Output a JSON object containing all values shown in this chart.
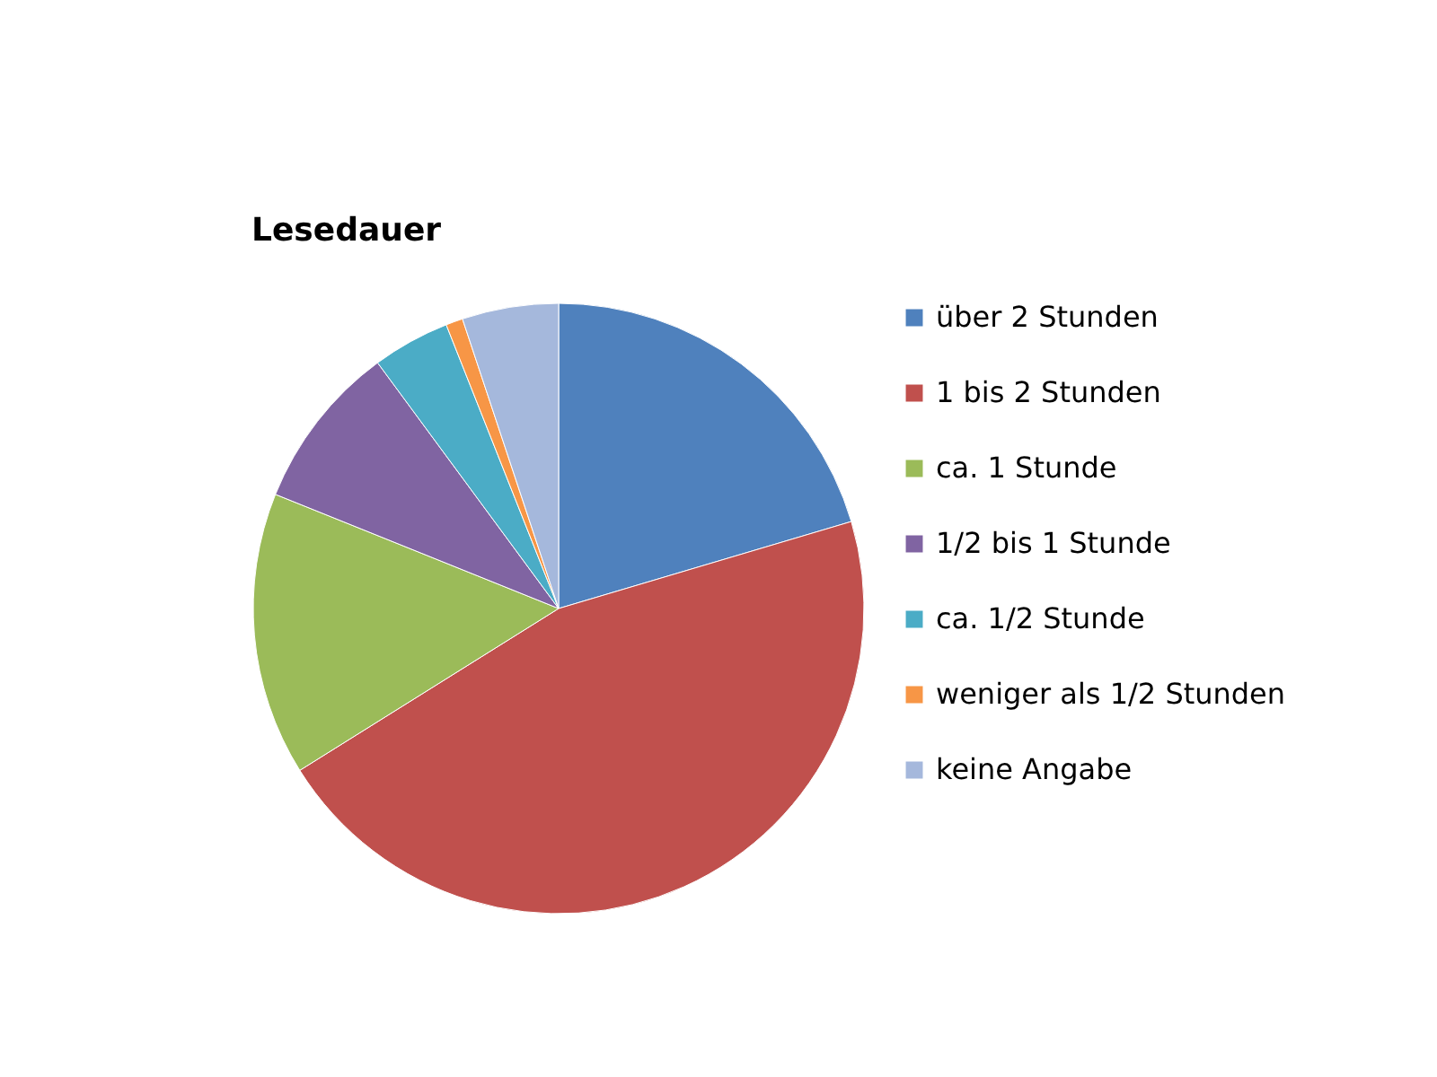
{
  "chart_data": {
    "type": "pie",
    "title": "Lesedauer",
    "categories": [
      "über 2 Stunden",
      "1 bis 2 Stunden",
      "ca. 1 Stunde",
      "1/2 bis 1 Stunde",
      "ca. 1/2 Stunde",
      "weniger als 1/2 Stunden",
      "keine Angabe"
    ],
    "values": [
      20.4,
      45.7,
      15.0,
      8.8,
      4.1,
      0.9,
      5.1
    ],
    "colors": [
      "#4f81bd",
      "#c0504d",
      "#9bbb59",
      "#8064a2",
      "#4bacc6",
      "#f79646",
      "#a5b8dc"
    ],
    "legend": "right"
  }
}
